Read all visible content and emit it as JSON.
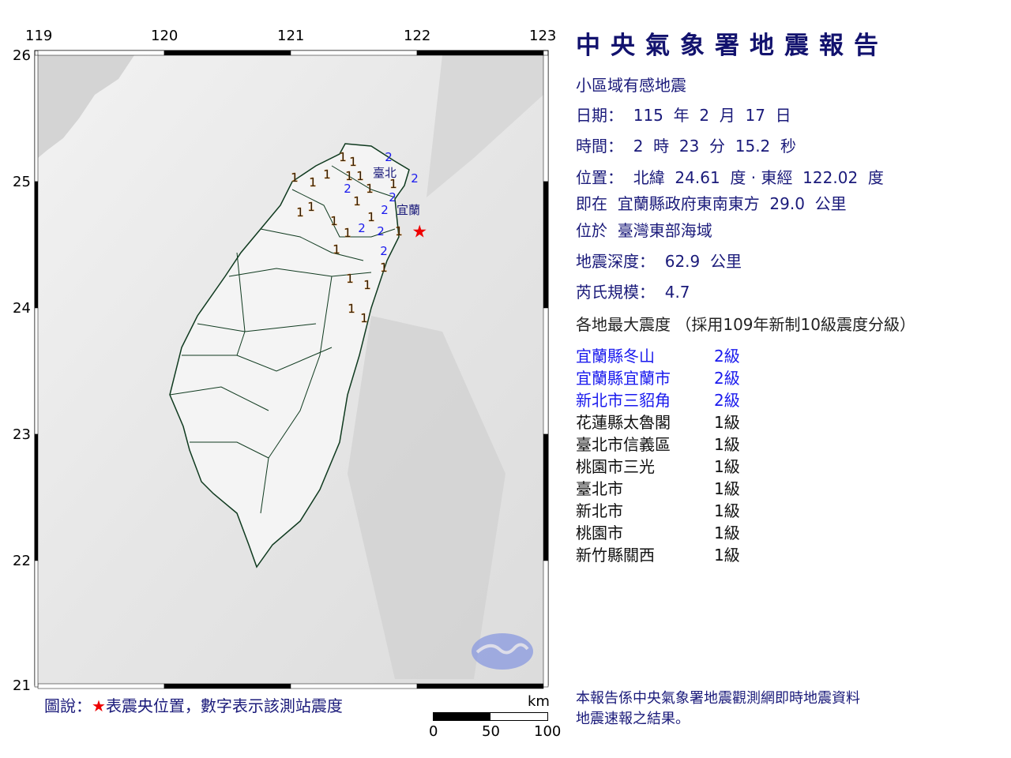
{
  "map": {
    "lon_ticks": [
      "119",
      "120",
      "121",
      "122",
      "123"
    ],
    "lat_ticks": [
      "26",
      "25",
      "24",
      "23",
      "22",
      "21"
    ],
    "city_labels": [
      "臺北",
      "宜蘭"
    ],
    "stations": [
      "1",
      "1",
      "1",
      "1",
      "1",
      "1",
      "1",
      "1",
      "2",
      "2",
      "1",
      "2",
      "1",
      "2",
      "2",
      "1",
      "1",
      "1",
      "1",
      "1",
      "2",
      "2",
      "1",
      "1",
      "2",
      "1",
      "1",
      "1",
      "1",
      "1"
    ],
    "epicenter_lat": 24.61,
    "epicenter_lon": 122.02,
    "epicenter_color": "#ee0000",
    "intensity_colors": {
      "1": "#000000",
      "2": "#1a1aee"
    }
  },
  "report": {
    "title": "中央氣象署地震報告",
    "subtitle": "小區域有感地震",
    "date": "日期：  115  年  2  月  17  日",
    "time": "時間：  2  時  23  分  15.2  秒",
    "position": "位置：  北緯  24.61  度 · 東經  122.02  度",
    "relative": "即在  宜蘭縣政府東南東方  29.0  公里",
    "region": "位於  臺灣東部海域",
    "depth": "地震深度：  62.9  公里",
    "magnitude": "芮氏規模：  4.7",
    "intensity_header": "各地最大震度 （採用109年新制10級震度分級）",
    "intensities": [
      {
        "name": "宜蘭縣冬山",
        "level": "2級"
      },
      {
        "name": "宜蘭縣宜蘭市",
        "level": "2級"
      },
      {
        "name": "新北市三貂角",
        "level": "2級"
      },
      {
        "name": "花蓮縣太魯閣",
        "level": "1級"
      },
      {
        "name": "臺北市信義區",
        "level": "1級"
      },
      {
        "name": "桃園市三光",
        "level": "1級"
      },
      {
        "name": "臺北市",
        "level": "1級"
      },
      {
        "name": "新北市",
        "level": "1級"
      },
      {
        "name": "桃園市",
        "level": "1級"
      },
      {
        "name": "新竹縣關西",
        "level": "1級"
      }
    ],
    "footer_line1": "本報告係中央氣象署地震觀測網即時地震資料",
    "footer_line2": "地震速報之結果。"
  },
  "legend": {
    "prefix": "圖說：",
    "star": "★",
    "text": "表震央位置，數字表示該測站震度"
  },
  "scale": {
    "unit": "km",
    "labels": [
      "0",
      "50",
      "100"
    ]
  }
}
